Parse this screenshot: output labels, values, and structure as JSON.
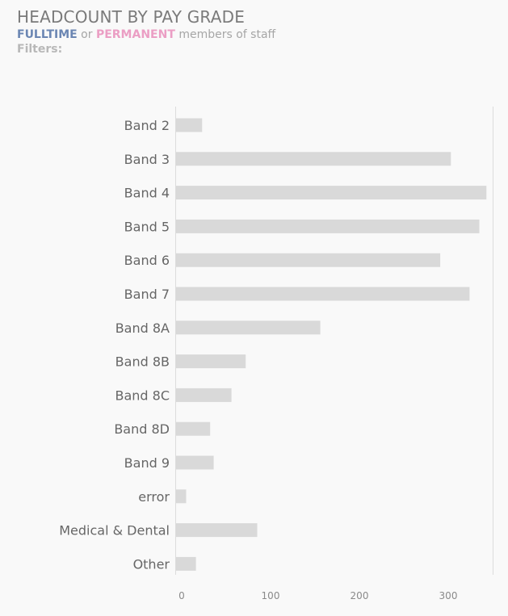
{
  "header": {
    "title": "HEADCOUNT BY PAY GRADE",
    "subtitle_part1": "FULLTIME",
    "subtitle_part2": " or ",
    "subtitle_part3": "PERMANENT",
    "subtitle_part4": " members of staff",
    "filters_label": "Filters:",
    "colors": {
      "title": "#7a7a7a",
      "fulltime": "#6b86b3",
      "permanent": "#eb9ec4",
      "bar": "#d9d9d9"
    }
  },
  "chart_data": {
    "type": "bar",
    "orientation": "horizontal",
    "categories": [
      "Band 2",
      "Band 3",
      "Band 4",
      "Band 5",
      "Band 6",
      "Band 7",
      "Band 8A",
      "Band 8B",
      "Band 8C",
      "Band 8D",
      "Band 9",
      "error",
      "Medical & Dental",
      "Other"
    ],
    "values": [
      23,
      303,
      343,
      335,
      291,
      324,
      156,
      72,
      56,
      32,
      36,
      5,
      85,
      16
    ],
    "xticks": [
      "0",
      "100",
      "200",
      "300"
    ],
    "xtick_values": [
      0,
      100,
      200,
      300
    ],
    "xlim": [
      -6,
      360
    ],
    "grid": false
  }
}
